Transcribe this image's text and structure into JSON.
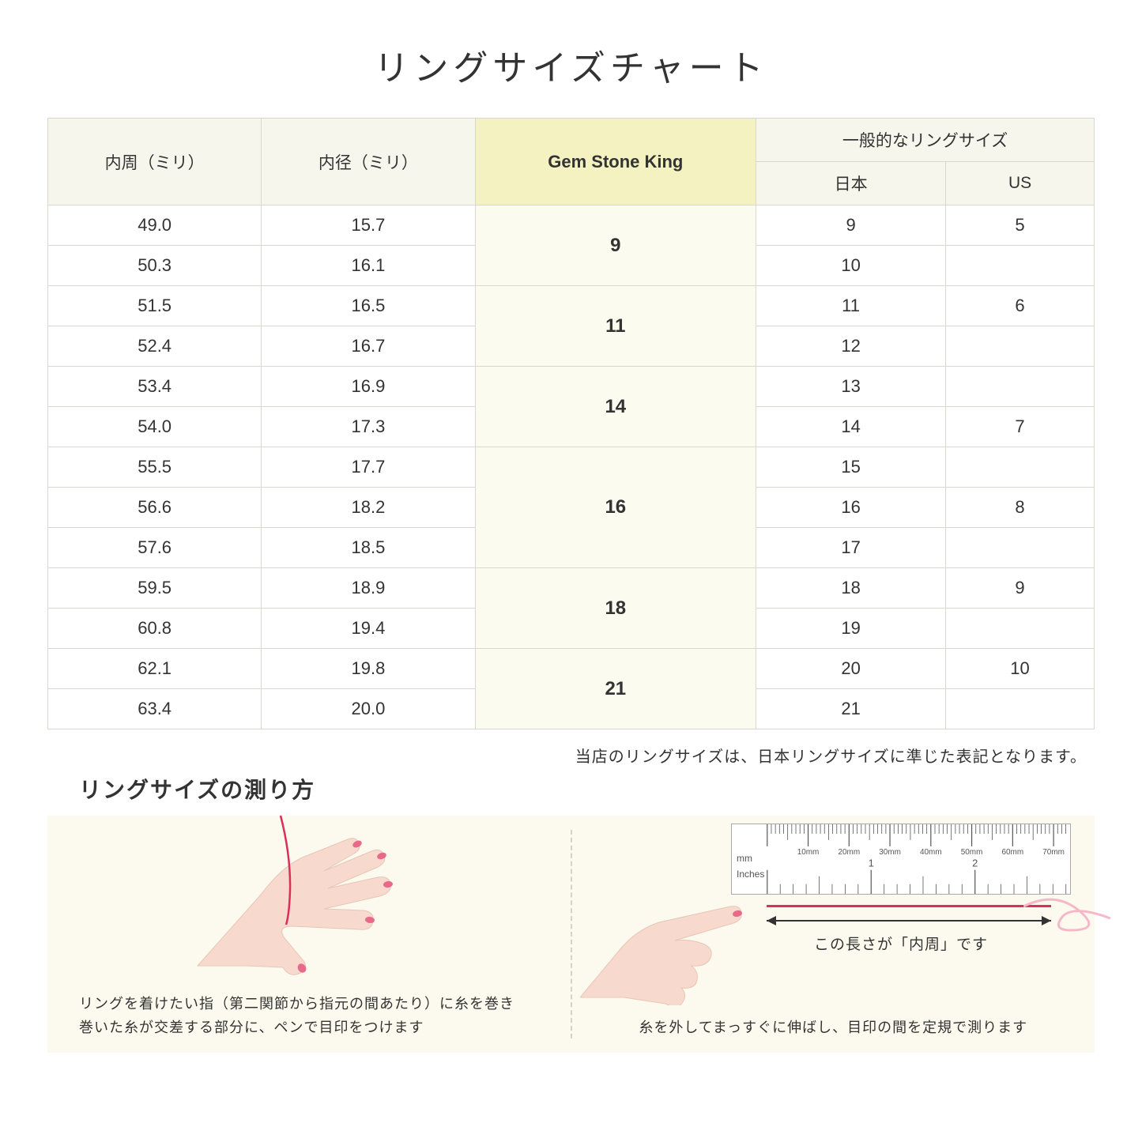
{
  "title": "リングサイズチャート",
  "table": {
    "headers": {
      "circumference": "内周（ミリ）",
      "diameter": "内径（ミリ）",
      "gsk": "Gem Stone King",
      "common_group": "一般的なリングサイズ",
      "japan": "日本",
      "us": "US"
    },
    "groups": [
      {
        "gsk": "9",
        "rows": [
          {
            "c": "49.0",
            "d": "15.7",
            "jp": "9",
            "us": "5"
          },
          {
            "c": "50.3",
            "d": "16.1",
            "jp": "10",
            "us": ""
          }
        ]
      },
      {
        "gsk": "11",
        "rows": [
          {
            "c": "51.5",
            "d": "16.5",
            "jp": "11",
            "us": "6"
          },
          {
            "c": "52.4",
            "d": "16.7",
            "jp": "12",
            "us": ""
          }
        ]
      },
      {
        "gsk": "14",
        "rows": [
          {
            "c": "53.4",
            "d": "16.9",
            "jp": "13",
            "us": ""
          },
          {
            "c": "54.0",
            "d": "17.3",
            "jp": "14",
            "us": "7"
          }
        ]
      },
      {
        "gsk": "16",
        "rows": [
          {
            "c": "55.5",
            "d": "17.7",
            "jp": "15",
            "us": ""
          },
          {
            "c": "56.6",
            "d": "18.2",
            "jp": "16",
            "us": "8"
          },
          {
            "c": "57.6",
            "d": "18.5",
            "jp": "17",
            "us": ""
          }
        ]
      },
      {
        "gsk": "18",
        "rows": [
          {
            "c": "59.5",
            "d": "18.9",
            "jp": "18",
            "us": "9"
          },
          {
            "c": "60.8",
            "d": "19.4",
            "jp": "19",
            "us": ""
          }
        ]
      },
      {
        "gsk": "21",
        "rows": [
          {
            "c": "62.1",
            "d": "19.8",
            "jp": "20",
            "us": "10"
          },
          {
            "c": "63.4",
            "d": "20.0",
            "jp": "21",
            "us": ""
          }
        ]
      }
    ]
  },
  "footnote": "当店のリングサイズは、日本リングサイズに準じた表記となります。",
  "howto": {
    "title": "リングサイズの測り方",
    "left_caption_l1": "リングを着けたい指（第二関節から指元の間あたり）に糸を巻き",
    "left_caption_l2": "巻いた糸が交差する部分に、ペンで目印をつけます",
    "right_caption": "糸を外してまっすぐに伸ばし、目印の間を定規で測ります",
    "arrow_label": "この長さが「内周」です"
  },
  "ruler": {
    "mm_ticks": [
      "10mm",
      "20mm",
      "30mm",
      "40mm",
      "50mm",
      "60mm",
      "70mm"
    ],
    "mm_label": "mm",
    "in_label": "Inches",
    "in_ticks": [
      "1",
      "2"
    ]
  },
  "colors": {
    "header_bg": "#f6f6ec",
    "gsk_header_bg": "#f3f2c0",
    "gsk_cell_bg": "#fcfbef",
    "panel_bg": "#fcfaee",
    "skin": "#f7d9cd",
    "skin_dark": "#edc3b3",
    "nail": "#e86a8a",
    "thread": "#d9305a"
  }
}
